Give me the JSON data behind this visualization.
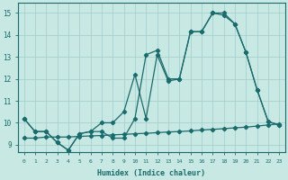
{
  "xlabel": "Humidex (Indice chaleur)",
  "xlim": [
    -0.5,
    23.5
  ],
  "ylim": [
    8.65,
    15.45
  ],
  "xticks": [
    0,
    1,
    2,
    3,
    4,
    5,
    6,
    7,
    8,
    9,
    10,
    11,
    12,
    13,
    14,
    15,
    16,
    17,
    18,
    19,
    20,
    21,
    22,
    23
  ],
  "yticks": [
    9,
    10,
    11,
    12,
    13,
    14,
    15
  ],
  "bg_color": "#c8e8e4",
  "line_color": "#1a6b6b",
  "grid_color": "#a0cccc",
  "line_bottom_x": [
    0,
    1,
    2,
    3,
    4,
    5,
    6,
    7,
    8,
    9,
    10,
    11,
    12,
    13,
    14,
    15,
    16,
    17,
    18,
    19,
    20,
    21,
    22,
    23
  ],
  "line_bottom_y": [
    9.3,
    9.3,
    9.35,
    9.35,
    9.35,
    9.38,
    9.4,
    9.42,
    9.45,
    9.47,
    9.5,
    9.52,
    9.55,
    9.58,
    9.6,
    9.63,
    9.67,
    9.7,
    9.73,
    9.77,
    9.8,
    9.85,
    9.9,
    9.95
  ],
  "line_mid_x": [
    0,
    1,
    2,
    3,
    4,
    5,
    6,
    7,
    8,
    9,
    10,
    11,
    12,
    13,
    14,
    15,
    16,
    17,
    18,
    19,
    20,
    21,
    22,
    23
  ],
  "line_mid_y": [
    10.2,
    9.6,
    9.6,
    9.1,
    8.75,
    9.5,
    9.6,
    9.6,
    9.3,
    9.3,
    10.2,
    13.1,
    13.3,
    12.0,
    12.0,
    14.15,
    14.15,
    15.0,
    15.0,
    14.5,
    13.2,
    11.5,
    10.05,
    9.9
  ],
  "line_top_x": [
    0,
    1,
    2,
    3,
    4,
    5,
    6,
    7,
    8,
    9,
    10,
    11,
    12,
    13,
    14,
    15,
    16,
    17,
    18,
    19,
    20,
    21,
    22,
    23
  ],
  "line_top_y": [
    10.2,
    9.6,
    9.6,
    9.1,
    8.75,
    9.5,
    9.6,
    10.0,
    10.0,
    10.5,
    12.2,
    10.2,
    13.1,
    11.9,
    12.0,
    14.15,
    14.15,
    15.0,
    14.9,
    14.5,
    13.2,
    11.5,
    10.05,
    9.9
  ]
}
